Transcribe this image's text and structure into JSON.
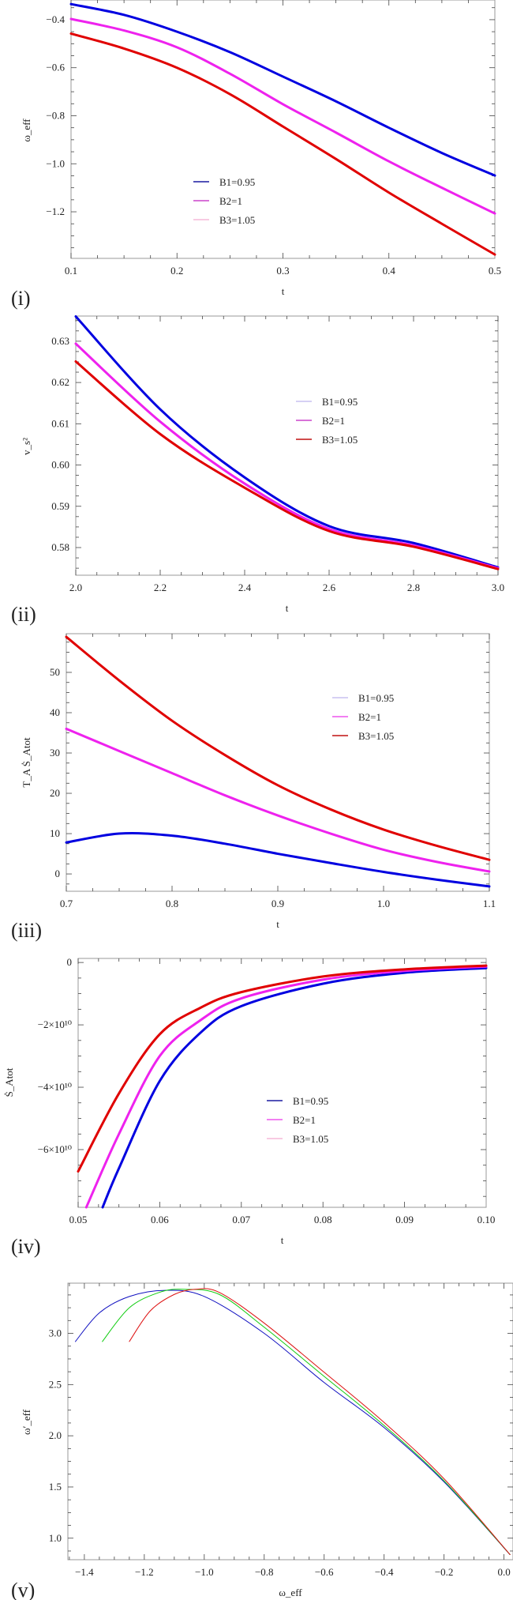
{
  "chart_data": [
    {
      "id": "i",
      "type": "line",
      "panel_label": "(i)",
      "xlabel": "t",
      "ylabel": "ω_eff",
      "xlim": [
        0.1,
        0.5
      ],
      "ylim": [
        -1.394,
        -0.318
      ],
      "xticks": [
        0.1,
        0.2,
        0.3,
        0.4,
        0.5
      ],
      "xtick_labels": [
        "0.1",
        "0.2",
        "0.3",
        "0.4",
        "0.5"
      ],
      "yticks": [
        -0.4,
        -0.6,
        -0.8,
        -1.0,
        -1.2
      ],
      "ytick_labels": [
        "−0.4",
        "−0.6",
        "−0.8",
        "−1.0",
        "−1.2"
      ],
      "legend": {
        "placement": "lower-center",
        "entries": [
          {
            "label": "B1=0.95",
            "color": "#1a1aa0"
          },
          {
            "label": "B2=1",
            "color": "#cc44cc"
          },
          {
            "label": "B3=1.05",
            "color": "#f5b8d8"
          }
        ]
      },
      "series": [
        {
          "name": "B1=0.95",
          "color": "#0000e0",
          "x": [
            0.1,
            0.15,
            0.2,
            0.25,
            0.3,
            0.35,
            0.4,
            0.45,
            0.5
          ],
          "y": [
            -0.335,
            -0.38,
            -0.45,
            -0.535,
            -0.637,
            -0.74,
            -0.85,
            -0.955,
            -1.049
          ]
        },
        {
          "name": "B2=1",
          "color": "#ee22ee",
          "x": [
            0.1,
            0.15,
            0.2,
            0.25,
            0.3,
            0.35,
            0.4,
            0.45,
            0.5
          ],
          "y": [
            -0.397,
            -0.445,
            -0.515,
            -0.625,
            -0.752,
            -0.87,
            -0.99,
            -1.1,
            -1.207
          ]
        },
        {
          "name": "B3=1.05",
          "color": "#e00000",
          "x": [
            0.1,
            0.15,
            0.2,
            0.25,
            0.3,
            0.35,
            0.4,
            0.45,
            0.5
          ],
          "y": [
            -0.458,
            -0.52,
            -0.6,
            -0.71,
            -0.845,
            -0.98,
            -1.12,
            -1.25,
            -1.378
          ]
        }
      ]
    },
    {
      "id": "ii",
      "type": "line",
      "panel_label": "(ii)",
      "xlabel": "t",
      "ylabel": "v_s²",
      "xlim": [
        2.0,
        3.0
      ],
      "ylim": [
        0.5733,
        0.6361
      ],
      "xticks": [
        2.0,
        2.2,
        2.4,
        2.6,
        2.8,
        3.0
      ],
      "xtick_labels": [
        "2.0",
        "2.2",
        "2.4",
        "2.6",
        "2.8",
        "3.0"
      ],
      "yticks": [
        0.63,
        0.62,
        0.61,
        0.6,
        0.59,
        0.58
      ],
      "ytick_labels": [
        "0.63",
        "0.62",
        "0.61",
        "0.60",
        "0.59",
        "0.58"
      ],
      "legend": {
        "placement": "top-right",
        "entries": [
          {
            "label": "B1=0.95",
            "color": "#c8c0f0"
          },
          {
            "label": "B2=1",
            "color": "#cc44cc"
          },
          {
            "label": "B3=1.05",
            "color": "#c01010"
          }
        ]
      },
      "series": [
        {
          "name": "B1=0.95",
          "color": "#0000e0",
          "x": [
            2.0,
            2.2,
            2.4,
            2.6,
            2.8,
            3.0
          ],
          "y": [
            0.636,
            0.6135,
            0.597,
            0.5852,
            0.5811,
            0.5752
          ]
        },
        {
          "name": "B2=1",
          "color": "#ee22ee",
          "x": [
            2.0,
            2.2,
            2.4,
            2.6,
            2.8,
            3.0
          ],
          "y": [
            0.6294,
            0.6105,
            0.5955,
            0.5845,
            0.5805,
            0.575
          ]
        },
        {
          "name": "B3=1.05",
          "color": "#e00000",
          "x": [
            2.0,
            2.2,
            2.4,
            2.6,
            2.8,
            3.0
          ],
          "y": [
            0.6251,
            0.6075,
            0.5945,
            0.584,
            0.5802,
            0.5748
          ]
        }
      ]
    },
    {
      "id": "iii",
      "type": "line",
      "panel_label": "(iii)",
      "xlabel": "t",
      "ylabel": "T_A Ṡ_Atot",
      "xlim": [
        0.7,
        1.1
      ],
      "ylim": [
        -4.3,
        59.6
      ],
      "xticks": [
        0.7,
        0.8,
        0.9,
        1.0,
        1.1
      ],
      "xtick_labels": [
        "0.7",
        "0.8",
        "0.9",
        "1.0",
        "1.1"
      ],
      "yticks": [
        50,
        40,
        30,
        20,
        10,
        0
      ],
      "ytick_labels": [
        "50",
        "40",
        "30",
        "20",
        "10",
        "0"
      ],
      "legend": {
        "placement": "top-right",
        "entries": [
          {
            "label": "B1=0.95",
            "color": "#c8c0f0"
          },
          {
            "label": "B2=1",
            "color": "#ee55ee"
          },
          {
            "label": "B3=1.05",
            "color": "#c01010"
          }
        ]
      },
      "series": [
        {
          "name": "B1=0.95",
          "color": "#0000e0",
          "x": [
            0.7,
            0.75,
            0.8,
            0.85,
            0.9,
            0.95,
            1.0,
            1.05,
            1.1
          ],
          "y": [
            7.8,
            10,
            9.5,
            7.5,
            5,
            2.7,
            0.5,
            -1.4,
            -3.1
          ]
        },
        {
          "name": "B2=1",
          "color": "#ee22ee",
          "x": [
            0.7,
            0.75,
            0.8,
            0.85,
            0.9,
            0.95,
            1.0,
            1.05,
            1.1
          ],
          "y": [
            36,
            30.5,
            25,
            19.5,
            14.5,
            10,
            6,
            3,
            0.6
          ]
        },
        {
          "name": "B3=1.05",
          "color": "#e00000",
          "x": [
            0.7,
            0.75,
            0.8,
            0.85,
            0.9,
            0.95,
            1.0,
            1.05,
            1.1
          ],
          "y": [
            58.8,
            48,
            38,
            29.5,
            22,
            16,
            11,
            7,
            3.5
          ]
        }
      ]
    },
    {
      "id": "iv",
      "type": "line",
      "panel_label": "(iv)",
      "xlabel": "t",
      "ylabel": "Ṡ_Atot",
      "y_scale_note": "×10¹⁰",
      "xlim": [
        0.05,
        0.1
      ],
      "ylim": [
        -7.85,
        0.13
      ],
      "xticks": [
        0.05,
        0.06,
        0.07,
        0.08,
        0.09,
        0.1
      ],
      "xtick_labels": [
        "0.05",
        "0.06",
        "0.07",
        "0.08",
        "0.09",
        "0.10"
      ],
      "yticks": [
        0,
        -2,
        -4,
        -6
      ],
      "ytick_labels": [
        "0",
        "−2×10¹⁰",
        "−4×10¹⁰",
        "−6×10¹⁰"
      ],
      "legend": {
        "placement": "center-right",
        "entries": [
          {
            "label": "B1=0.95",
            "color": "#1a1aa0"
          },
          {
            "label": "B2=1",
            "color": "#ee55ee"
          },
          {
            "label": "B3=1.05",
            "color": "#f5b8d8"
          }
        ]
      },
      "series": [
        {
          "name": "B1=0.95",
          "color": "#0000e0",
          "x": [
            0.053,
            0.055,
            0.06,
            0.065,
            0.07,
            0.08,
            0.09,
            0.1
          ],
          "y": [
            -7.85,
            -6.6,
            -3.8,
            -2.25,
            -1.4,
            -0.68,
            -0.33,
            -0.18
          ]
        },
        {
          "name": "B2=1",
          "color": "#ee22ee",
          "x": [
            0.051,
            0.055,
            0.06,
            0.065,
            0.07,
            0.08,
            0.09,
            0.1
          ],
          "y": [
            -7.85,
            -5.5,
            -3.0,
            -1.85,
            -1.15,
            -0.55,
            -0.27,
            -0.13
          ]
        },
        {
          "name": "B3=1.05",
          "color": "#e00000",
          "x": [
            0.05,
            0.055,
            0.06,
            0.065,
            0.07,
            0.08,
            0.09,
            0.1
          ],
          "y": [
            -6.7,
            -4.2,
            -2.3,
            -1.45,
            -0.95,
            -0.45,
            -0.22,
            -0.1
          ]
        }
      ]
    },
    {
      "id": "v",
      "type": "line",
      "panel_label": "(v)",
      "xlabel": "ω_eff",
      "ylabel": "ω′_eff",
      "xlim": [
        -1.455,
        0.03
      ],
      "ylim": [
        0.79,
        3.49
      ],
      "xticks": [
        -1.4,
        -1.2,
        -1.0,
        -0.8,
        -0.6,
        -0.4,
        -0.2,
        0.0
      ],
      "xtick_labels": [
        "−1.4",
        "−1.2",
        "−1.0",
        "−0.8",
        "−0.6",
        "−0.4",
        "−0.2",
        "0.0"
      ],
      "yticks": [
        1.0,
        1.5,
        2.0,
        2.5,
        3.0
      ],
      "ytick_labels": [
        "1.0",
        "1.5",
        "2.0",
        "2.5",
        "3.0"
      ],
      "legend": null,
      "series": [
        {
          "name": "blue",
          "color": "#1010c0",
          "x": [
            -1.43,
            -1.35,
            -1.25,
            -1.13,
            -1.0,
            -0.8,
            -0.6,
            -0.4,
            -0.2,
            0.02
          ],
          "y": [
            2.92,
            3.2,
            3.36,
            3.42,
            3.36,
            3.0,
            2.52,
            2.08,
            1.55,
            0.84
          ]
        },
        {
          "name": "green",
          "color": "#10cc10",
          "x": [
            -1.34,
            -1.25,
            -1.15,
            -1.07,
            -0.95,
            -0.8,
            -0.6,
            -0.4,
            -0.2,
            0.02
          ],
          "y": [
            2.92,
            3.25,
            3.4,
            3.43,
            3.38,
            3.06,
            2.58,
            2.1,
            1.56,
            0.84
          ]
        },
        {
          "name": "red",
          "color": "#dd1010",
          "x": [
            -1.25,
            -1.18,
            -1.1,
            -1.03,
            -0.95,
            -0.8,
            -0.6,
            -0.4,
            -0.2,
            0.02
          ],
          "y": [
            2.92,
            3.22,
            3.38,
            3.43,
            3.4,
            3.1,
            2.62,
            2.13,
            1.58,
            0.84
          ]
        }
      ]
    }
  ]
}
